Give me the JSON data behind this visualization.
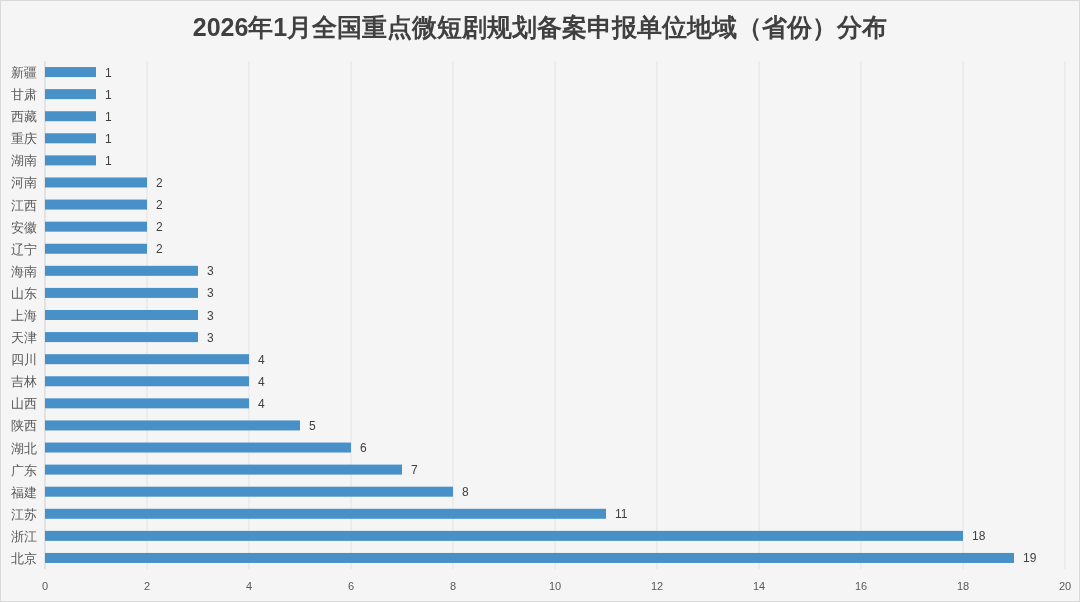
{
  "chart_data": {
    "type": "bar",
    "orientation": "horizontal",
    "title": "2026年1月全国重点微短剧规划备案申报单位地域（省份）分布",
    "categories": [
      "新疆",
      "甘肃",
      "西藏",
      "重庆",
      "湖南",
      "河南",
      "江西",
      "安徽",
      "辽宁",
      "海南",
      "山东",
      "上海",
      "天津",
      "四川",
      "吉林",
      "山西",
      "陕西",
      "湖北",
      "广东",
      "福建",
      "江苏",
      "浙江",
      "北京"
    ],
    "values": [
      1,
      1,
      1,
      1,
      1,
      2,
      2,
      2,
      2,
      3,
      3,
      3,
      3,
      4,
      4,
      4,
      5,
      6,
      7,
      8,
      11,
      18,
      19
    ],
    "color": "#4790c8",
    "xlim": [
      0,
      20
    ],
    "xticks": [
      0,
      2,
      4,
      6,
      8,
      10,
      12,
      14,
      16,
      18,
      20
    ],
    "grid": "x",
    "data_labels": true
  }
}
